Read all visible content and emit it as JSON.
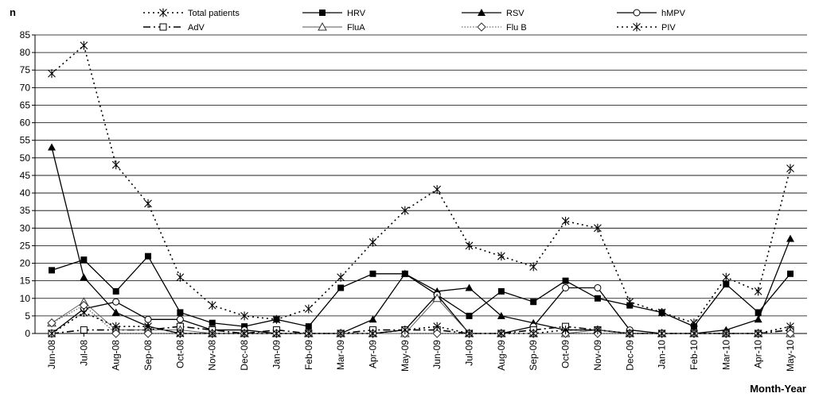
{
  "chart_data": {
    "type": "line",
    "title": "",
    "ylabel": "n",
    "xlabel": "Month-Year",
    "ylim": [
      0,
      85
    ],
    "ytick_step": 5,
    "grid": true,
    "legend_position": "top",
    "categories": [
      "Jun-08",
      "Jul-08",
      "Aug-08",
      "Sep-08",
      "Oct-08",
      "Nov-08",
      "Dec-08",
      "Jan-09",
      "Feb-09",
      "Mar-09",
      "Apr-09",
      "May-09",
      "Jun-09",
      "Jul-09",
      "Aug-09",
      "Sep-09",
      "Oct-09",
      "Nov-09",
      "Dec-09",
      "Jan-10",
      "Feb-10",
      "Mar-10",
      "Apr-10",
      "May-10"
    ],
    "series": [
      {
        "name": "Total patients",
        "marker": "asterisk",
        "dash": "dotted",
        "values": [
          74,
          82,
          48,
          37,
          16,
          8,
          5,
          4,
          7,
          16,
          26,
          35,
          41,
          25,
          22,
          19,
          32,
          30,
          9,
          6,
          3,
          16,
          12,
          47
        ]
      },
      {
        "name": "HRV",
        "marker": "square-filled",
        "dash": "solid",
        "values": [
          18,
          21,
          12,
          22,
          6,
          3,
          2,
          4,
          2,
          13,
          17,
          17,
          11,
          5,
          12,
          9,
          15,
          10,
          8,
          6,
          2,
          14,
          6,
          17
        ]
      },
      {
        "name": "RSV",
        "marker": "triangle-filled",
        "dash": "solid",
        "values": [
          53,
          16,
          6,
          2,
          0,
          0,
          0,
          0,
          0,
          0,
          4,
          17,
          12,
          13,
          5,
          3,
          1,
          1,
          0,
          0,
          0,
          1,
          4,
          27
        ]
      },
      {
        "name": "hMPV",
        "marker": "circle-open",
        "dash": "solid",
        "values": [
          0,
          7,
          9,
          4,
          4,
          1,
          1,
          0,
          0,
          0,
          0,
          1,
          11,
          0,
          0,
          2,
          13,
          13,
          1,
          0,
          0,
          0,
          0,
          0
        ]
      },
      {
        "name": "AdV",
        "marker": "square-open",
        "dash": "dashdot",
        "values": [
          0,
          1,
          1,
          1,
          2,
          1,
          0,
          1,
          0,
          0,
          1,
          1,
          1,
          0,
          0,
          1,
          2,
          1,
          0,
          0,
          0,
          0,
          0,
          1
        ]
      },
      {
        "name": "FluA",
        "marker": "triangle-open",
        "dash": "solid-thin",
        "values": [
          3,
          9,
          1,
          1,
          1,
          0,
          0,
          0,
          0,
          0,
          0,
          0,
          10,
          0,
          0,
          0,
          0,
          1,
          0,
          0,
          0,
          0,
          0,
          0
        ]
      },
      {
        "name": "Flu B",
        "marker": "diamond-open",
        "dash": "dotted-thin",
        "values": [
          3,
          8,
          0,
          0,
          0,
          0,
          0,
          0,
          0,
          0,
          0,
          0,
          0,
          0,
          0,
          0,
          0,
          0,
          0,
          0,
          0,
          0,
          0,
          0
        ]
      },
      {
        "name": "PIV",
        "marker": "asterisk",
        "dash": "dotted",
        "values": [
          0,
          6,
          2,
          2,
          0,
          0,
          0,
          0,
          0,
          0,
          0,
          1,
          2,
          0,
          0,
          0,
          1,
          1,
          0,
          0,
          0,
          0,
          0,
          2
        ]
      }
    ]
  }
}
